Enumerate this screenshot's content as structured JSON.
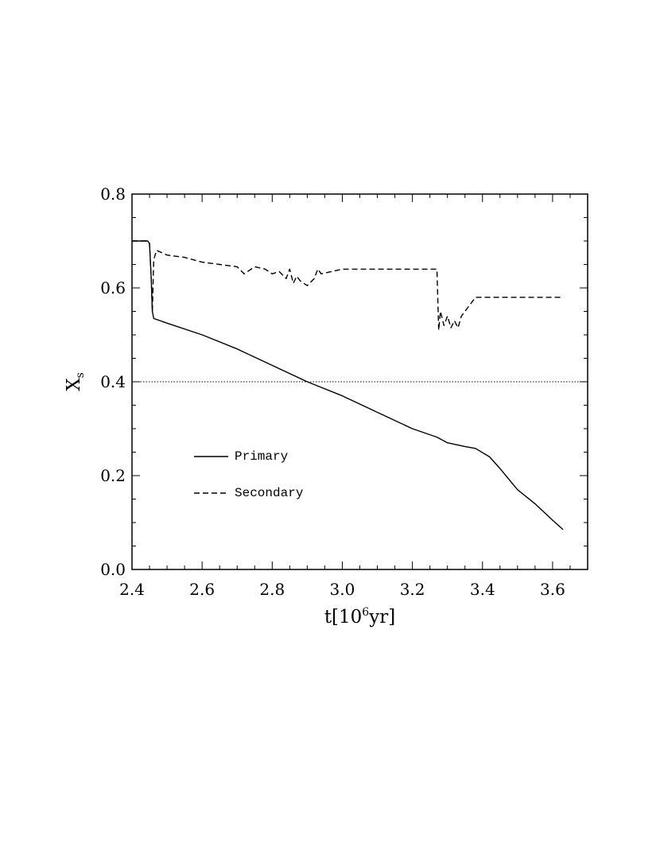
{
  "chart_data": {
    "type": "line",
    "xlabel": {
      "main": "t[10",
      "sup": "6",
      "tail": "yr]"
    },
    "ylabel": {
      "main": "X",
      "sub": "s"
    },
    "xlim": [
      2.4,
      3.7
    ],
    "ylim": [
      0.0,
      0.8
    ],
    "xticks": [
      "2.4",
      "2.6",
      "2.8",
      "3.0",
      "3.2",
      "3.4",
      "3.6"
    ],
    "yticks": [
      "0.0",
      "0.2",
      "0.4",
      "0.6",
      "0.8"
    ],
    "reference_line": {
      "y": 0.4,
      "style": "dotted"
    },
    "legend": {
      "placement": "lower-left"
    },
    "series": [
      {
        "name": "Primary",
        "style": "solid",
        "x": [
          2.4,
          2.445,
          2.45,
          2.455,
          2.458,
          2.462,
          2.5,
          2.6,
          2.7,
          2.8,
          2.9,
          3.0,
          3.1,
          3.2,
          3.27,
          3.3,
          3.35,
          3.38,
          3.42,
          3.45,
          3.5,
          3.55,
          3.6,
          3.63
        ],
        "y": [
          0.7,
          0.7,
          0.695,
          0.62,
          0.55,
          0.535,
          0.525,
          0.5,
          0.47,
          0.435,
          0.4,
          0.37,
          0.335,
          0.3,
          0.282,
          0.27,
          0.262,
          0.258,
          0.24,
          0.215,
          0.17,
          0.14,
          0.105,
          0.085
        ]
      },
      {
        "name": "Secondary",
        "style": "dashed",
        "x": [
          2.4,
          2.445,
          2.45,
          2.455,
          2.458,
          2.462,
          2.47,
          2.5,
          2.55,
          2.6,
          2.65,
          2.7,
          2.72,
          2.75,
          2.78,
          2.8,
          2.82,
          2.84,
          2.85,
          2.86,
          2.87,
          2.88,
          2.9,
          2.92,
          2.93,
          2.94,
          3.0,
          3.1,
          3.2,
          3.27,
          3.275,
          3.28,
          3.29,
          3.3,
          3.31,
          3.32,
          3.33,
          3.34,
          3.36,
          3.38,
          3.45,
          3.5,
          3.55,
          3.6,
          3.63
        ],
        "y": [
          0.7,
          0.7,
          0.695,
          0.62,
          0.55,
          0.66,
          0.68,
          0.67,
          0.665,
          0.655,
          0.65,
          0.645,
          0.63,
          0.645,
          0.64,
          0.63,
          0.635,
          0.62,
          0.64,
          0.61,
          0.625,
          0.615,
          0.605,
          0.62,
          0.64,
          0.63,
          0.64,
          0.64,
          0.64,
          0.64,
          0.51,
          0.55,
          0.52,
          0.54,
          0.515,
          0.53,
          0.515,
          0.54,
          0.56,
          0.58,
          0.58,
          0.58,
          0.58,
          0.58,
          0.58
        ]
      }
    ]
  },
  "colors": {
    "line": "#000000",
    "background": "#ffffff"
  }
}
